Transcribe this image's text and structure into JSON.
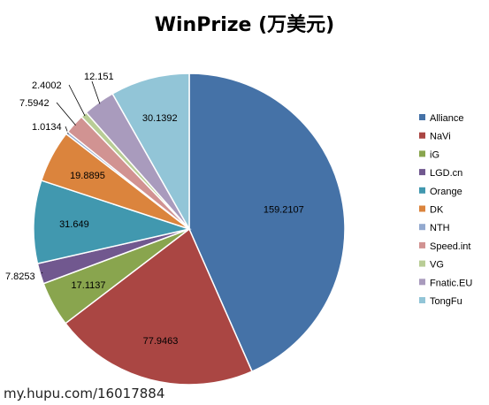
{
  "chart_data": {
    "type": "pie",
    "title": "WinPrize (万美元)",
    "legend_position": "right",
    "slices": [
      {
        "name": "Alliance",
        "value": 159.2107,
        "color": "#4572a7"
      },
      {
        "name": "NaVi",
        "value": 77.9463,
        "color": "#aa4643"
      },
      {
        "name": "iG",
        "value": 17.1137,
        "color": "#89a54e"
      },
      {
        "name": "LGD.cn",
        "value": 7.8253,
        "color": "#71588f"
      },
      {
        "name": "Orange",
        "value": 31.649,
        "color": "#4198af"
      },
      {
        "name": "DK",
        "value": 19.8895,
        "color": "#db843d"
      },
      {
        "name": "NTH",
        "value": 1.0134,
        "color": "#93a9cf"
      },
      {
        "name": "Speed.int",
        "value": 7.5942,
        "color": "#d19392"
      },
      {
        "name": "VG",
        "value": 2.4002,
        "color": "#b9cd96"
      },
      {
        "name": "Fnatic.EU",
        "value": 12.151,
        "color": "#a99bbd"
      },
      {
        "name": "TongFu",
        "value": 30.1392,
        "color": "#92c5d7"
      }
    ]
  },
  "watermark": "my.hupu.com/16017884"
}
